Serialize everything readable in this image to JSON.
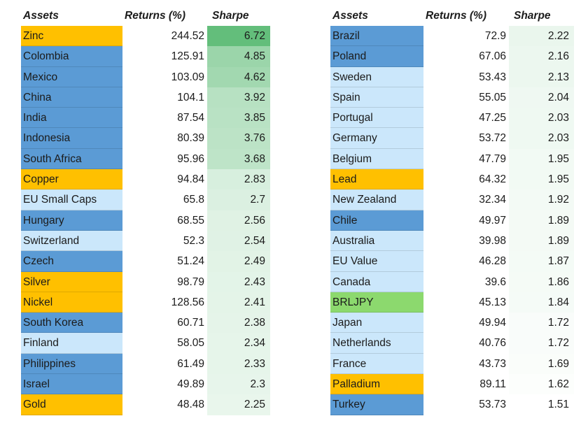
{
  "palette": {
    "page_bg": "#FFFFFF",
    "text": "#1B1B1B",
    "fill_orange": "#FFC000",
    "fill_blue": "#5B9BD5",
    "fill_lightblue": "#CBE7FB",
    "fill_green": "#8CD96E",
    "returns_bg": "#FFFFFF"
  },
  "conditional_formatting": {
    "column": "sharpe",
    "type": "2-color-scale",
    "min_value": 1.51,
    "max_value": 6.72,
    "min_color": "#FFFFFF",
    "max_color": "#63BE7B"
  },
  "chart_data": [
    {
      "type": "table",
      "columns": [
        "Assets",
        "Returns (%)",
        "Sharpe"
      ],
      "rows": [
        {
          "asset": "Zinc",
          "fill": "orange",
          "returns": "244.52",
          "sharpe": "6.72"
        },
        {
          "asset": "Colombia",
          "fill": "blue",
          "returns": "125.91",
          "sharpe": "4.85"
        },
        {
          "asset": "Mexico",
          "fill": "blue",
          "returns": "103.09",
          "sharpe": "4.62"
        },
        {
          "asset": "China",
          "fill": "blue",
          "returns": "104.1",
          "sharpe": "3.92"
        },
        {
          "asset": "India",
          "fill": "blue",
          "returns": "87.54",
          "sharpe": "3.85"
        },
        {
          "asset": "Indonesia",
          "fill": "blue",
          "returns": "80.39",
          "sharpe": "3.76"
        },
        {
          "asset": "South Africa",
          "fill": "blue",
          "returns": "95.96",
          "sharpe": "3.68"
        },
        {
          "asset": "Copper",
          "fill": "orange",
          "returns": "94.84",
          "sharpe": "2.83"
        },
        {
          "asset": "EU Small Caps",
          "fill": "lightblue",
          "returns": "65.8",
          "sharpe": "2.7"
        },
        {
          "asset": "Hungary",
          "fill": "blue",
          "returns": "68.55",
          "sharpe": "2.56"
        },
        {
          "asset": "Switzerland",
          "fill": "lightblue",
          "returns": "52.3",
          "sharpe": "2.54"
        },
        {
          "asset": "Czech",
          "fill": "blue",
          "returns": "51.24",
          "sharpe": "2.49"
        },
        {
          "asset": "Silver",
          "fill": "orange",
          "returns": "98.79",
          "sharpe": "2.43"
        },
        {
          "asset": "Nickel",
          "fill": "orange",
          "returns": "128.56",
          "sharpe": "2.41"
        },
        {
          "asset": "South Korea",
          "fill": "blue",
          "returns": "60.71",
          "sharpe": "2.38"
        },
        {
          "asset": "Finland",
          "fill": "lightblue",
          "returns": "58.05",
          "sharpe": "2.34"
        },
        {
          "asset": "Philippines",
          "fill": "blue",
          "returns": "61.49",
          "sharpe": "2.33"
        },
        {
          "asset": "Israel",
          "fill": "blue",
          "returns": "49.89",
          "sharpe": "2.3"
        },
        {
          "asset": "Gold",
          "fill": "orange",
          "returns": "48.48",
          "sharpe": "2.25"
        }
      ]
    },
    {
      "type": "table",
      "columns": [
        "Assets",
        "Returns (%)",
        "Sharpe"
      ],
      "rows": [
        {
          "asset": "Brazil",
          "fill": "blue",
          "returns": "72.9",
          "sharpe": "2.22"
        },
        {
          "asset": "Poland",
          "fill": "blue",
          "returns": "67.06",
          "sharpe": "2.16"
        },
        {
          "asset": "Sweden",
          "fill": "lightblue",
          "returns": "53.43",
          "sharpe": "2.13"
        },
        {
          "asset": "Spain",
          "fill": "lightblue",
          "returns": "55.05",
          "sharpe": "2.04"
        },
        {
          "asset": "Portugal",
          "fill": "lightblue",
          "returns": "47.25",
          "sharpe": "2.03"
        },
        {
          "asset": "Germany",
          "fill": "lightblue",
          "returns": "53.72",
          "sharpe": "2.03"
        },
        {
          "asset": "Belgium",
          "fill": "lightblue",
          "returns": "47.79",
          "sharpe": "1.95"
        },
        {
          "asset": "Lead",
          "fill": "orange",
          "returns": "64.32",
          "sharpe": "1.95"
        },
        {
          "asset": "New Zealand",
          "fill": "lightblue",
          "returns": "32.34",
          "sharpe": "1.92"
        },
        {
          "asset": "Chile",
          "fill": "blue",
          "returns": "49.97",
          "sharpe": "1.89"
        },
        {
          "asset": "Australia",
          "fill": "lightblue",
          "returns": "39.98",
          "sharpe": "1.89"
        },
        {
          "asset": "EU Value",
          "fill": "lightblue",
          "returns": "46.28",
          "sharpe": "1.87"
        },
        {
          "asset": "Canada",
          "fill": "lightblue",
          "returns": "39.6",
          "sharpe": "1.86"
        },
        {
          "asset": "BRLJPY",
          "fill": "green",
          "returns": "45.13",
          "sharpe": "1.84"
        },
        {
          "asset": "Japan",
          "fill": "lightblue",
          "returns": "49.94",
          "sharpe": "1.72"
        },
        {
          "asset": "Netherlands",
          "fill": "lightblue",
          "returns": "40.76",
          "sharpe": "1.72"
        },
        {
          "asset": "France",
          "fill": "lightblue",
          "returns": "43.73",
          "sharpe": "1.69"
        },
        {
          "asset": "Palladium",
          "fill": "orange",
          "returns": "89.11",
          "sharpe": "1.62"
        },
        {
          "asset": "Turkey",
          "fill": "blue",
          "returns": "53.73",
          "sharpe": "1.51"
        }
      ]
    }
  ]
}
